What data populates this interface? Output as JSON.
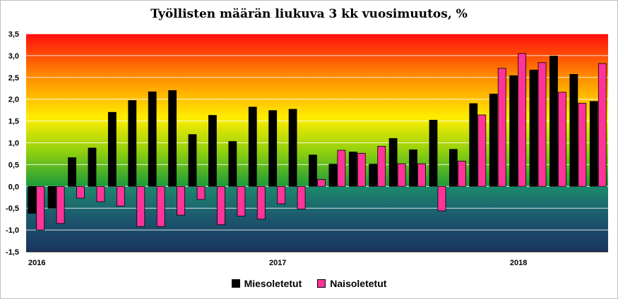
{
  "chart_data": {
    "type": "bar",
    "title": "Työllisten määrän liukuva 3 kk vuosimuutos, %",
    "xlabel": "",
    "ylabel": "",
    "ylim": [
      -1.5,
      3.5
    ],
    "yticks": [
      "3,5",
      "3,0",
      "2,5",
      "2,0",
      "1,5",
      "1,0",
      "0,5",
      "0,0",
      "-0,5",
      "-1,0",
      "-1,5"
    ],
    "year_labels": [
      "2016",
      "2017",
      "2018"
    ],
    "grid": true,
    "legend_position": "bottom",
    "series": [
      {
        "name": "Miesoletetut",
        "color": "#000000",
        "values": [
          -0.62,
          -0.5,
          0.66,
          0.88,
          1.7,
          1.97,
          2.17,
          2.2,
          1.19,
          1.63,
          1.03,
          1.82,
          1.74,
          1.77,
          0.72,
          0.51,
          0.79,
          0.51,
          1.1,
          0.84,
          1.52,
          0.85,
          1.9,
          2.12,
          2.54,
          2.67,
          2.99,
          2.57,
          1.95
        ]
      },
      {
        "name": "Naisoletetut",
        "color": "#ff3399",
        "values": [
          -1.0,
          -0.85,
          -0.27,
          -0.35,
          -0.45,
          -0.92,
          -0.92,
          -0.66,
          -0.3,
          -0.88,
          -0.68,
          -0.75,
          -0.4,
          -0.52,
          0.16,
          0.83,
          0.76,
          0.92,
          0.52,
          0.52,
          -0.56,
          0.58,
          1.64,
          2.71,
          3.05,
          2.84,
          2.16,
          1.91,
          2.82
        ]
      }
    ]
  }
}
